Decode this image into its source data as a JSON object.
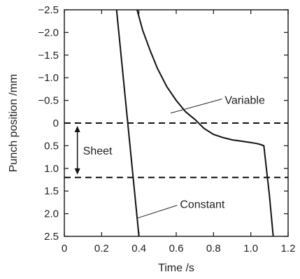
{
  "chart_data": {
    "type": "line",
    "xlabel": "Time /s",
    "ylabel": "Punch position /mm",
    "xlim": [
      0,
      1.2
    ],
    "ylim": [
      -2.5,
      2.5
    ],
    "y_inverted": true,
    "grid": false,
    "x_ticks": [
      0,
      0.2,
      0.4,
      0.6,
      0.8,
      1.0,
      1.2
    ],
    "x_tick_labels": [
      "0",
      "0.2",
      "0.4",
      "0.6",
      "0.8",
      "1.0",
      "1.2"
    ],
    "y_ticks": [
      -2.5,
      -2.0,
      -1.5,
      -1.0,
      -0.5,
      0,
      0.5,
      1.0,
      1.5,
      2.0,
      2.5
    ],
    "y_tick_labels": [
      "−2.5",
      "−2.0",
      "−1.5",
      "−1.0",
      "−0.5",
      "0",
      "0.5",
      "1.0",
      "1.5",
      "2.0",
      "2.5"
    ],
    "series": [
      {
        "name": "Variable",
        "color": "#111111",
        "x": [
          0.39,
          0.42,
          0.46,
          0.5,
          0.55,
          0.6,
          0.65,
          0.7,
          0.75,
          0.8,
          0.85,
          0.9,
          0.95,
          1.0,
          1.03,
          1.05,
          1.07,
          1.1,
          1.12
        ],
        "y": [
          -2.5,
          -2.05,
          -1.6,
          -1.2,
          -0.8,
          -0.5,
          -0.25,
          -0.08,
          0.12,
          0.25,
          0.32,
          0.37,
          0.4,
          0.43,
          0.45,
          0.47,
          0.5,
          1.6,
          2.5
        ]
      },
      {
        "name": "Constant",
        "color": "#111111",
        "x": [
          0.28,
          0.4
        ],
        "y": [
          -2.5,
          2.5
        ]
      }
    ],
    "reference_lines": [
      {
        "y": 0,
        "style": "dashed"
      },
      {
        "y": 1.2,
        "style": "dashed"
      }
    ],
    "annotations": [
      {
        "text": "Variable",
        "x": 0.86,
        "y": -0.5
      },
      {
        "text": "Constant",
        "x": 0.62,
        "y": 1.8
      },
      {
        "text": "Sheet",
        "y_from": 0,
        "y_to": 1.2,
        "x": 0.07
      }
    ]
  }
}
